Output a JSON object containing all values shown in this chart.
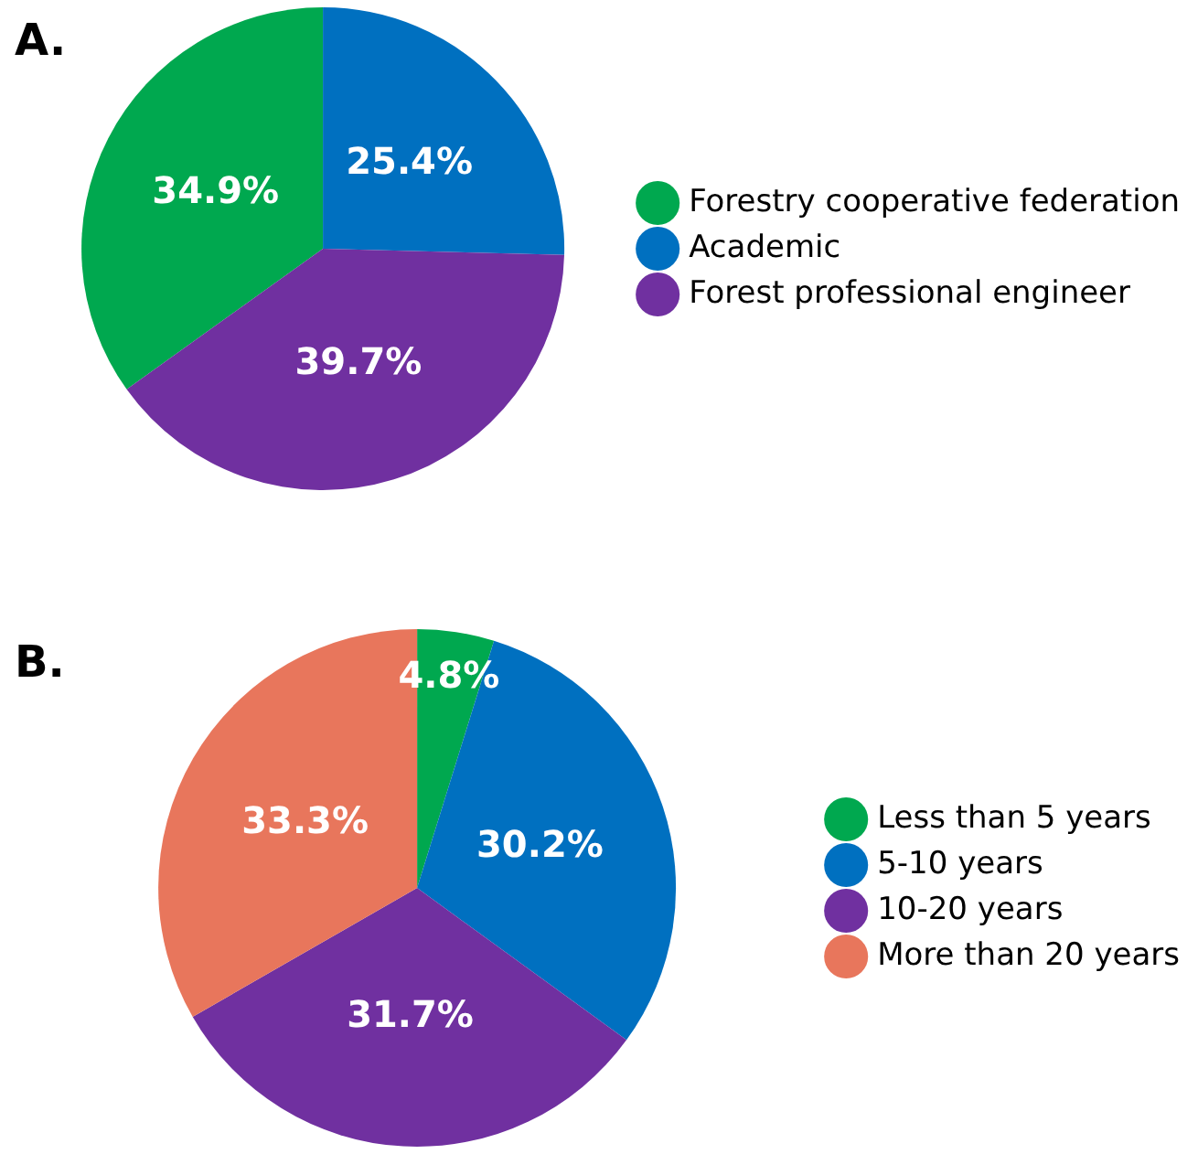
{
  "chart_data": [
    {
      "type": "pie",
      "title": "A.",
      "categories": [
        "Forestry cooperative federation",
        "Academic",
        "Forest professional engineer"
      ],
      "values": [
        34.9,
        25.4,
        39.7
      ],
      "colors": [
        "#00a84f",
        "#0070c0",
        "#7030a0"
      ],
      "value_labels": [
        "34.9%",
        "25.4%",
        "39.7%"
      ],
      "legend": "right"
    },
    {
      "type": "pie",
      "title": "B.",
      "categories": [
        "Less than 5 years",
        "5-10 years",
        "10-20 years",
        "More than 20 years"
      ],
      "values": [
        4.8,
        30.2,
        31.7,
        33.3
      ],
      "colors": [
        "#00a84f",
        "#0070c0",
        "#7030a0",
        "#e8765c"
      ],
      "value_labels": [
        "4.8%",
        "30.2%",
        "31.7%",
        "33.3%"
      ],
      "legend": "right"
    }
  ]
}
